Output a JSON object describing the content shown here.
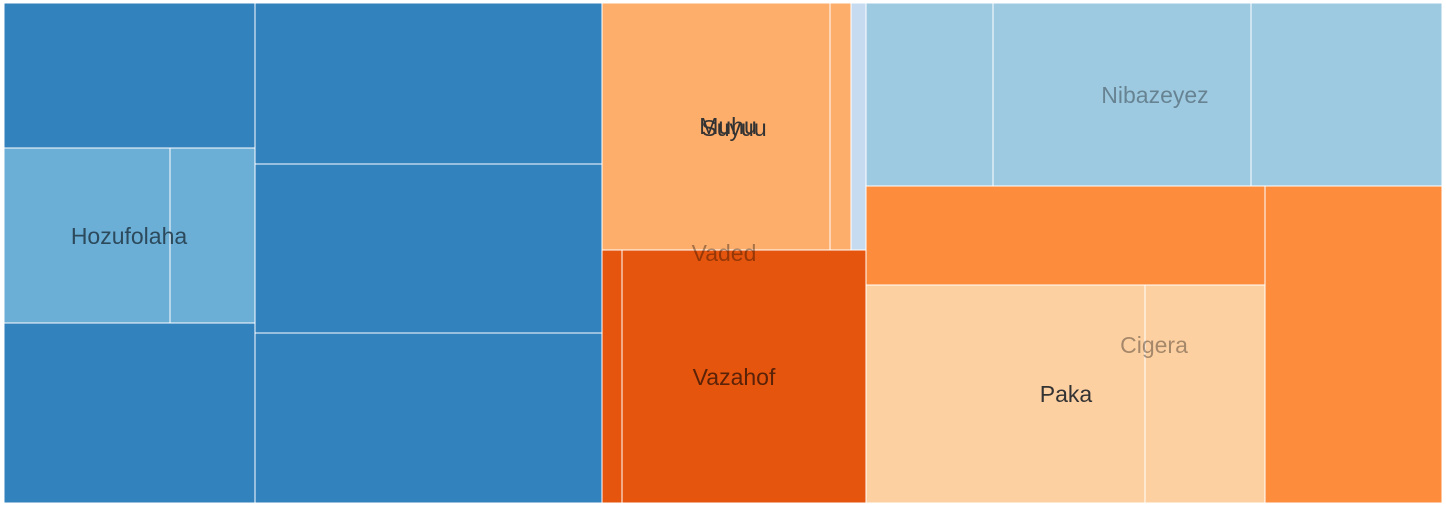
{
  "chart_data": {
    "type": "treemap",
    "title": "",
    "groups": [
      {
        "name": "",
        "color": "#3182bd",
        "leaves": [
          {
            "name": "",
            "value": 36
          },
          {
            "name": "Hozufolaha",
            "value": 24,
            "color": "#6baed6"
          },
          {
            "name": "",
            "value": 13,
            "color": "#6baed6"
          },
          {
            "name": "",
            "value": 45
          },
          {
            "name": "",
            "value": 56
          },
          {
            "name": "",
            "value": 58
          },
          {
            "name": "",
            "value": 60
          }
        ]
      },
      {
        "name": "Vaded",
        "color": "#e6550d",
        "leaves": [
          {
            "name": "Muhu",
            "value": 57,
            "color": "#fdae6b"
          },
          {
            "name": "Suyuu",
            "value": 5,
            "color": "#fdae6b"
          },
          {
            "name": "",
            "value": 5,
            "color": "#fd8d3c"
          },
          {
            "name": "",
            "value": 3,
            "color": "#c6dbef"
          },
          {
            "name": "",
            "value": 5
          },
          {
            "name": "Vazahof",
            "value": 61
          }
        ]
      },
      {
        "name": "Nibazeyez",
        "color": "#9ecae1",
        "leaves": [
          {
            "name": "",
            "value": 21
          },
          {
            "name": "",
            "value": 43
          },
          {
            "name": "",
            "value": 32
          }
        ]
      },
      {
        "name": "Cigera",
        "color": "#fd8d3c",
        "leaves": [
          {
            "name": "",
            "value": 36
          },
          {
            "name": "Paka",
            "value": 63,
            "color": "#fdd0a2"
          },
          {
            "name": "",
            "value": 24,
            "color": "#fdd0a2"
          },
          {
            "name": "",
            "value": 57
          }
        ]
      }
    ]
  }
}
